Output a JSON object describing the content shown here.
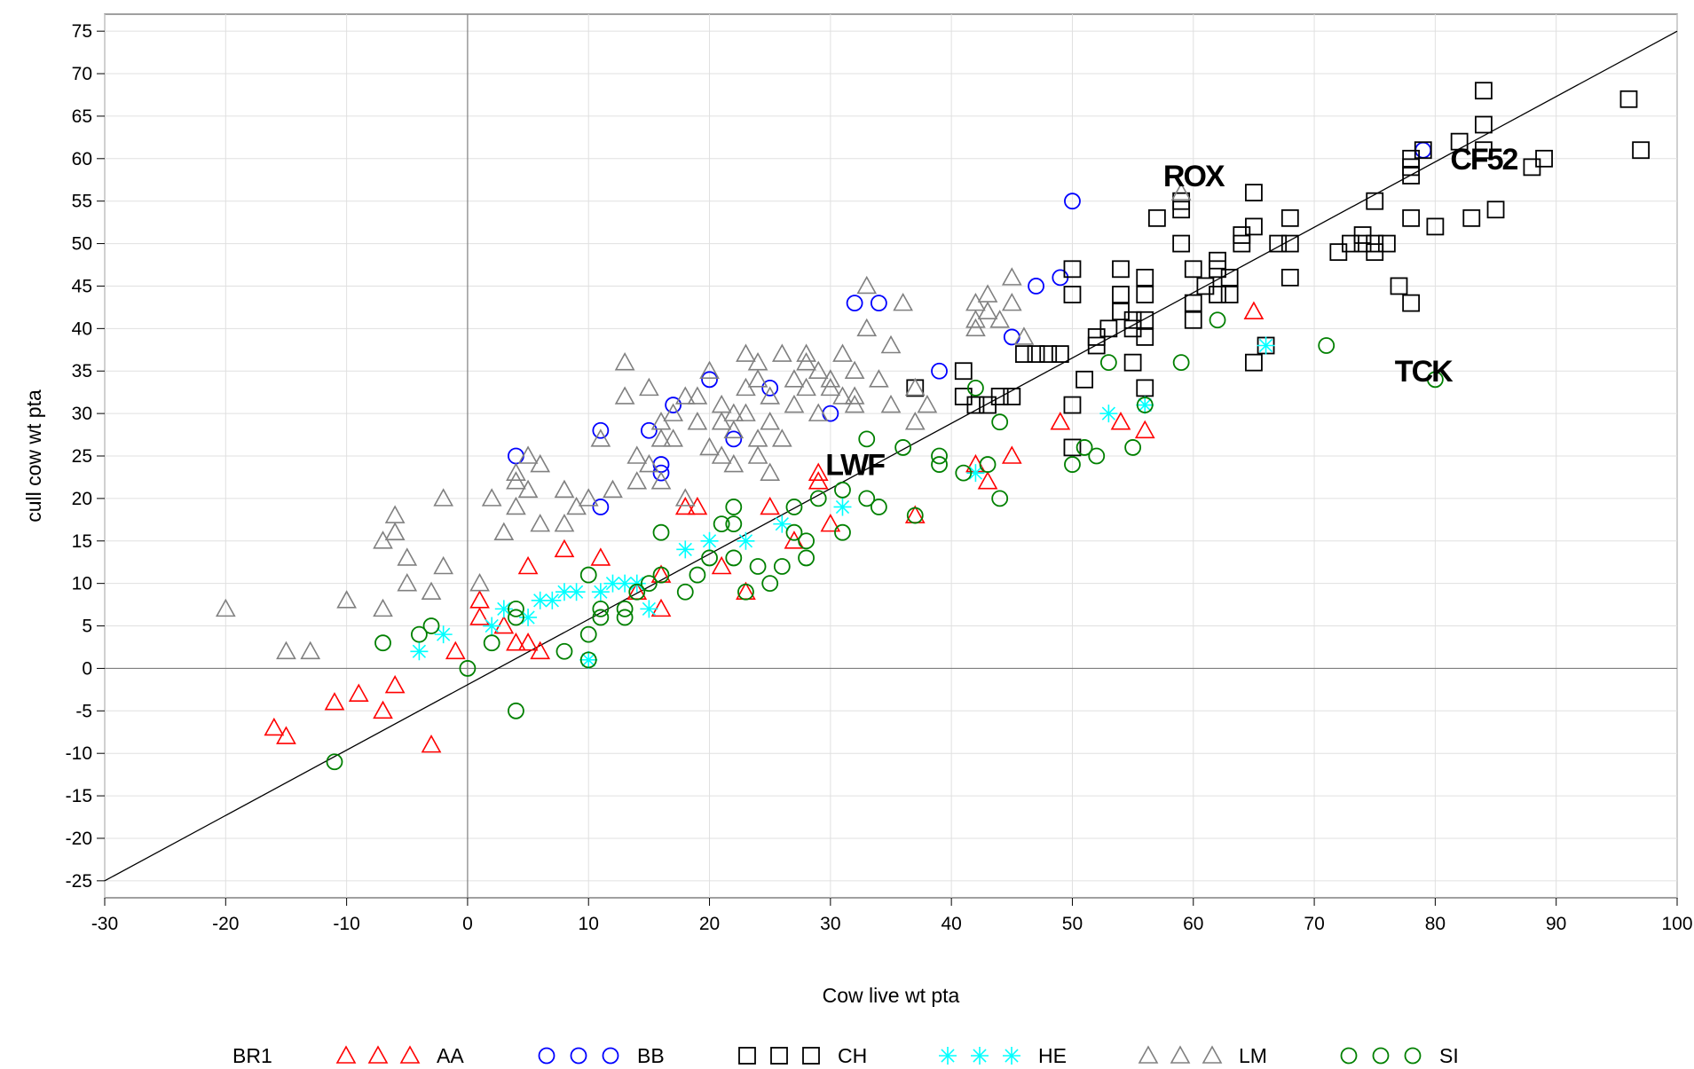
{
  "chart_data": {
    "type": "scatter",
    "title": "",
    "xlabel": "Cow live wt pta",
    "ylabel": "cull cow wt pta",
    "xlim": [
      -30,
      100
    ],
    "ylim": [
      -27,
      77
    ],
    "x_ticks": [
      -30,
      -20,
      -10,
      0,
      10,
      20,
      30,
      40,
      50,
      60,
      70,
      80,
      90,
      100
    ],
    "y_ticks": [
      -25,
      -20,
      -15,
      -10,
      -5,
      0,
      5,
      10,
      15,
      20,
      25,
      30,
      35,
      40,
      45,
      50,
      55,
      60,
      65,
      70,
      75
    ],
    "reference_lines": [
      {
        "type": "vertical",
        "x": 0,
        "color": "#808080"
      },
      {
        "type": "horizontal",
        "y": 0,
        "color": "#808080"
      },
      {
        "type": "line",
        "from": [
          -30,
          -25
        ],
        "to": [
          100,
          75
        ],
        "color": "#000000"
      }
    ],
    "legend": {
      "title": "BR1",
      "position": "bottom"
    },
    "annotations": [
      {
        "text": "ROX",
        "x": 60,
        "y": 58
      },
      {
        "text": "CF52",
        "x": 84,
        "y": 60
      },
      {
        "text": "TCK",
        "x": 79,
        "y": 35
      },
      {
        "text": "LWF",
        "x": 32,
        "y": 24
      }
    ],
    "series": [
      {
        "name": "AA",
        "marker": "triangle",
        "color": "#ff0000",
        "points": [
          [
            -16,
            -7
          ],
          [
            -15,
            -8
          ],
          [
            -11,
            -4
          ],
          [
            -9,
            -3
          ],
          [
            -7,
            -5
          ],
          [
            -6,
            -2
          ],
          [
            -3,
            -9
          ],
          [
            -1,
            2
          ],
          [
            1,
            6
          ],
          [
            1,
            8
          ],
          [
            3,
            5
          ],
          [
            4,
            3
          ],
          [
            5,
            12
          ],
          [
            5,
            3
          ],
          [
            6,
            2
          ],
          [
            8,
            14
          ],
          [
            11,
            13
          ],
          [
            14,
            9
          ],
          [
            16,
            7
          ],
          [
            16,
            11
          ],
          [
            18,
            19
          ],
          [
            19,
            19
          ],
          [
            21,
            12
          ],
          [
            23,
            9
          ],
          [
            25,
            19
          ],
          [
            27,
            15
          ],
          [
            29,
            22
          ],
          [
            29,
            23
          ],
          [
            30,
            17
          ],
          [
            37,
            18
          ],
          [
            42,
            24
          ],
          [
            43,
            22
          ],
          [
            45,
            25
          ],
          [
            49,
            29
          ],
          [
            54,
            29
          ],
          [
            56,
            28
          ],
          [
            65,
            42
          ]
        ]
      },
      {
        "name": "BB",
        "marker": "circle",
        "color": "#0000ff",
        "points": [
          [
            4,
            25
          ],
          [
            11,
            19
          ],
          [
            11,
            28
          ],
          [
            15,
            28
          ],
          [
            16,
            23
          ],
          [
            16,
            24
          ],
          [
            17,
            31
          ],
          [
            20,
            34
          ],
          [
            22,
            27
          ],
          [
            25,
            33
          ],
          [
            30,
            30
          ],
          [
            32,
            43
          ],
          [
            34,
            43
          ],
          [
            39,
            35
          ],
          [
            45,
            39
          ],
          [
            47,
            45
          ],
          [
            49,
            46
          ],
          [
            50,
            55
          ],
          [
            79,
            61
          ]
        ]
      },
      {
        "name": "CH",
        "marker": "square",
        "color": "#000000",
        "points": [
          [
            37,
            33
          ],
          [
            41,
            32
          ],
          [
            41,
            35
          ],
          [
            42,
            31
          ],
          [
            43,
            31
          ],
          [
            44,
            32
          ],
          [
            45,
            32
          ],
          [
            46,
            37
          ],
          [
            47,
            37
          ],
          [
            48,
            37
          ],
          [
            49,
            37
          ],
          [
            50,
            44
          ],
          [
            50,
            47
          ],
          [
            50,
            31
          ],
          [
            50,
            26
          ],
          [
            51,
            34
          ],
          [
            52,
            38
          ],
          [
            52,
            39
          ],
          [
            53,
            40
          ],
          [
            54,
            42
          ],
          [
            54,
            44
          ],
          [
            54,
            47
          ],
          [
            55,
            36
          ],
          [
            55,
            41
          ],
          [
            55,
            40
          ],
          [
            56,
            33
          ],
          [
            56,
            39
          ],
          [
            56,
            41
          ],
          [
            56,
            44
          ],
          [
            56,
            46
          ],
          [
            57,
            53
          ],
          [
            59,
            50
          ],
          [
            59,
            54
          ],
          [
            59,
            55
          ],
          [
            60,
            43
          ],
          [
            60,
            47
          ],
          [
            60,
            41
          ],
          [
            61,
            45
          ],
          [
            62,
            44
          ],
          [
            62,
            47
          ],
          [
            62,
            48
          ],
          [
            63,
            44
          ],
          [
            63,
            46
          ],
          [
            64,
            50
          ],
          [
            64,
            51
          ],
          [
            65,
            36
          ],
          [
            65,
            52
          ],
          [
            65,
            56
          ],
          [
            66,
            38
          ],
          [
            67,
            50
          ],
          [
            68,
            46
          ],
          [
            68,
            53
          ],
          [
            68,
            50
          ],
          [
            72,
            49
          ],
          [
            73,
            50
          ],
          [
            74,
            50
          ],
          [
            74,
            51
          ],
          [
            75,
            49
          ],
          [
            75,
            50
          ],
          [
            75,
            55
          ],
          [
            76,
            50
          ],
          [
            77,
            45
          ],
          [
            78,
            43
          ],
          [
            78,
            53
          ],
          [
            78,
            58
          ],
          [
            78,
            59
          ],
          [
            78,
            60
          ],
          [
            79,
            61
          ],
          [
            80,
            52
          ],
          [
            83,
            53
          ],
          [
            84,
            61
          ],
          [
            84,
            64
          ],
          [
            84,
            68
          ],
          [
            85,
            54
          ],
          [
            88,
            59
          ],
          [
            89,
            60
          ],
          [
            96,
            67
          ],
          [
            97,
            61
          ],
          [
            82,
            62
          ]
        ]
      },
      {
        "name": "HE",
        "marker": "star",
        "color": "#00ffff",
        "points": [
          [
            -4,
            2
          ],
          [
            -2,
            4
          ],
          [
            2,
            5
          ],
          [
            3,
            7
          ],
          [
            5,
            6
          ],
          [
            6,
            8
          ],
          [
            7,
            8
          ],
          [
            8,
            9
          ],
          [
            9,
            9
          ],
          [
            10,
            1
          ],
          [
            11,
            9
          ],
          [
            12,
            10
          ],
          [
            13,
            10
          ],
          [
            14,
            10
          ],
          [
            15,
            7
          ],
          [
            18,
            14
          ],
          [
            20,
            15
          ],
          [
            23,
            15
          ],
          [
            26,
            17
          ],
          [
            31,
            19
          ],
          [
            42,
            23
          ],
          [
            53,
            30
          ],
          [
            56,
            31
          ],
          [
            66,
            38
          ]
        ]
      },
      {
        "name": "LM",
        "marker": "triangle",
        "color": "#808080",
        "points": [
          [
            -20,
            7
          ],
          [
            -15,
            2
          ],
          [
            -13,
            2
          ],
          [
            -10,
            8
          ],
          [
            -7,
            7
          ],
          [
            -7,
            15
          ],
          [
            -6,
            18
          ],
          [
            -6,
            16
          ],
          [
            -5,
            13
          ],
          [
            -5,
            10
          ],
          [
            -3,
            9
          ],
          [
            -2,
            12
          ],
          [
            -2,
            20
          ],
          [
            1,
            10
          ],
          [
            2,
            20
          ],
          [
            3,
            16
          ],
          [
            4,
            19
          ],
          [
            4,
            22
          ],
          [
            4,
            23
          ],
          [
            5,
            25
          ],
          [
            5,
            21
          ],
          [
            6,
            24
          ],
          [
            6,
            17
          ],
          [
            8,
            21
          ],
          [
            8,
            17
          ],
          [
            9,
            19
          ],
          [
            10,
            20
          ],
          [
            11,
            27
          ],
          [
            12,
            21
          ],
          [
            13,
            36
          ],
          [
            13,
            32
          ],
          [
            14,
            22
          ],
          [
            14,
            25
          ],
          [
            15,
            33
          ],
          [
            15,
            24
          ],
          [
            16,
            22
          ],
          [
            16,
            27
          ],
          [
            16,
            29
          ],
          [
            17,
            27
          ],
          [
            17,
            30
          ],
          [
            18,
            32
          ],
          [
            18,
            20
          ],
          [
            19,
            32
          ],
          [
            19,
            29
          ],
          [
            20,
            35
          ],
          [
            20,
            26
          ],
          [
            21,
            29
          ],
          [
            21,
            31
          ],
          [
            21,
            25
          ],
          [
            22,
            24
          ],
          [
            22,
            30
          ],
          [
            22,
            28
          ],
          [
            23,
            37
          ],
          [
            23,
            33
          ],
          [
            23,
            30
          ],
          [
            24,
            36
          ],
          [
            24,
            34
          ],
          [
            24,
            27
          ],
          [
            24,
            25
          ],
          [
            25,
            29
          ],
          [
            25,
            32
          ],
          [
            25,
            23
          ],
          [
            26,
            27
          ],
          [
            26,
            37
          ],
          [
            27,
            34
          ],
          [
            27,
            31
          ],
          [
            28,
            36
          ],
          [
            28,
            33
          ],
          [
            28,
            37
          ],
          [
            29,
            35
          ],
          [
            29,
            30
          ],
          [
            30,
            34
          ],
          [
            30,
            33
          ],
          [
            31,
            37
          ],
          [
            31,
            32
          ],
          [
            32,
            31
          ],
          [
            32,
            35
          ],
          [
            32,
            32
          ],
          [
            33,
            45
          ],
          [
            33,
            40
          ],
          [
            34,
            34
          ],
          [
            35,
            31
          ],
          [
            35,
            38
          ],
          [
            36,
            43
          ],
          [
            37,
            33
          ],
          [
            37,
            29
          ],
          [
            38,
            31
          ],
          [
            42,
            43
          ],
          [
            42,
            41
          ],
          [
            42,
            40
          ],
          [
            43,
            42
          ],
          [
            43,
            44
          ],
          [
            44,
            41
          ],
          [
            45,
            46
          ],
          [
            45,
            43
          ],
          [
            46,
            39
          ],
          [
            59,
            56
          ]
        ]
      },
      {
        "name": "SI",
        "marker": "circle",
        "color": "#008000",
        "points": [
          [
            -11,
            -11
          ],
          [
            -7,
            3
          ],
          [
            -4,
            4
          ],
          [
            -3,
            5
          ],
          [
            0,
            0
          ],
          [
            2,
            3
          ],
          [
            4,
            -5
          ],
          [
            4,
            6
          ],
          [
            4,
            7
          ],
          [
            8,
            2
          ],
          [
            10,
            11
          ],
          [
            10,
            1
          ],
          [
            10,
            4
          ],
          [
            11,
            6
          ],
          [
            11,
            7
          ],
          [
            13,
            7
          ],
          [
            13,
            6
          ],
          [
            14,
            9
          ],
          [
            15,
            10
          ],
          [
            16,
            16
          ],
          [
            16,
            11
          ],
          [
            18,
            9
          ],
          [
            19,
            11
          ],
          [
            20,
            13
          ],
          [
            21,
            17
          ],
          [
            22,
            19
          ],
          [
            22,
            17
          ],
          [
            22,
            13
          ],
          [
            23,
            9
          ],
          [
            24,
            12
          ],
          [
            25,
            10
          ],
          [
            26,
            12
          ],
          [
            27,
            16
          ],
          [
            27,
            19
          ],
          [
            28,
            15
          ],
          [
            28,
            13
          ],
          [
            29,
            20
          ],
          [
            31,
            21
          ],
          [
            31,
            16
          ],
          [
            33,
            27
          ],
          [
            33,
            20
          ],
          [
            34,
            19
          ],
          [
            36,
            26
          ],
          [
            37,
            18
          ],
          [
            39,
            25
          ],
          [
            39,
            24
          ],
          [
            41,
            23
          ],
          [
            42,
            33
          ],
          [
            43,
            24
          ],
          [
            44,
            20
          ],
          [
            44,
            29
          ],
          [
            50,
            24
          ],
          [
            51,
            26
          ],
          [
            52,
            25
          ],
          [
            53,
            36
          ],
          [
            55,
            26
          ],
          [
            56,
            31
          ],
          [
            59,
            36
          ],
          [
            62,
            41
          ],
          [
            71,
            38
          ],
          [
            80,
            34
          ]
        ]
      }
    ]
  }
}
